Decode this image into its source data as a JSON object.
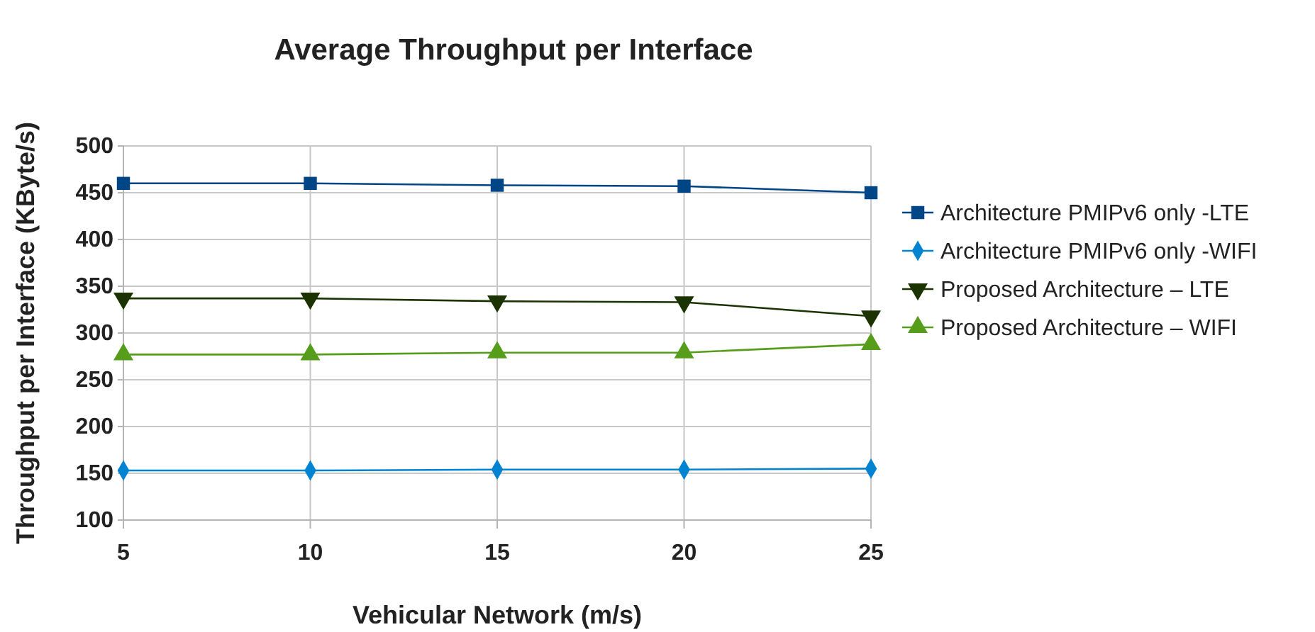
{
  "chart_data": {
    "type": "line",
    "title": "Average Throughput per Interface",
    "xlabel": "Vehicular Network (m/s)",
    "ylabel": "Throughput per Interface (KByte/s)",
    "x": [
      5,
      10,
      15,
      20,
      25
    ],
    "xlim": [
      5,
      25
    ],
    "xticks": [
      5,
      10,
      15,
      20,
      25
    ],
    "ylim": [
      100,
      500
    ],
    "yticks": [
      100,
      150,
      200,
      250,
      300,
      350,
      400,
      450,
      500
    ],
    "grid": true,
    "legend": "right",
    "series": [
      {
        "name": "Architecture PMIPv6 only -LTE",
        "color": "#004586",
        "marker": "square",
        "values": [
          460,
          460,
          458,
          457,
          450
        ]
      },
      {
        "name": "Architecture PMIPv6 only -WIFI",
        "color": "#0084d1",
        "marker": "diamond",
        "values": [
          153,
          153,
          154,
          154,
          155
        ]
      },
      {
        "name": "Proposed Architecture – LTE",
        "color": "#1a3300",
        "marker": "triangle-down",
        "values": [
          337,
          337,
          334,
          333,
          318
        ]
      },
      {
        "name": "Proposed Architecture – WIFI",
        "color": "#579d1c",
        "marker": "triangle",
        "values": [
          277,
          277,
          279,
          279,
          288
        ]
      }
    ]
  }
}
